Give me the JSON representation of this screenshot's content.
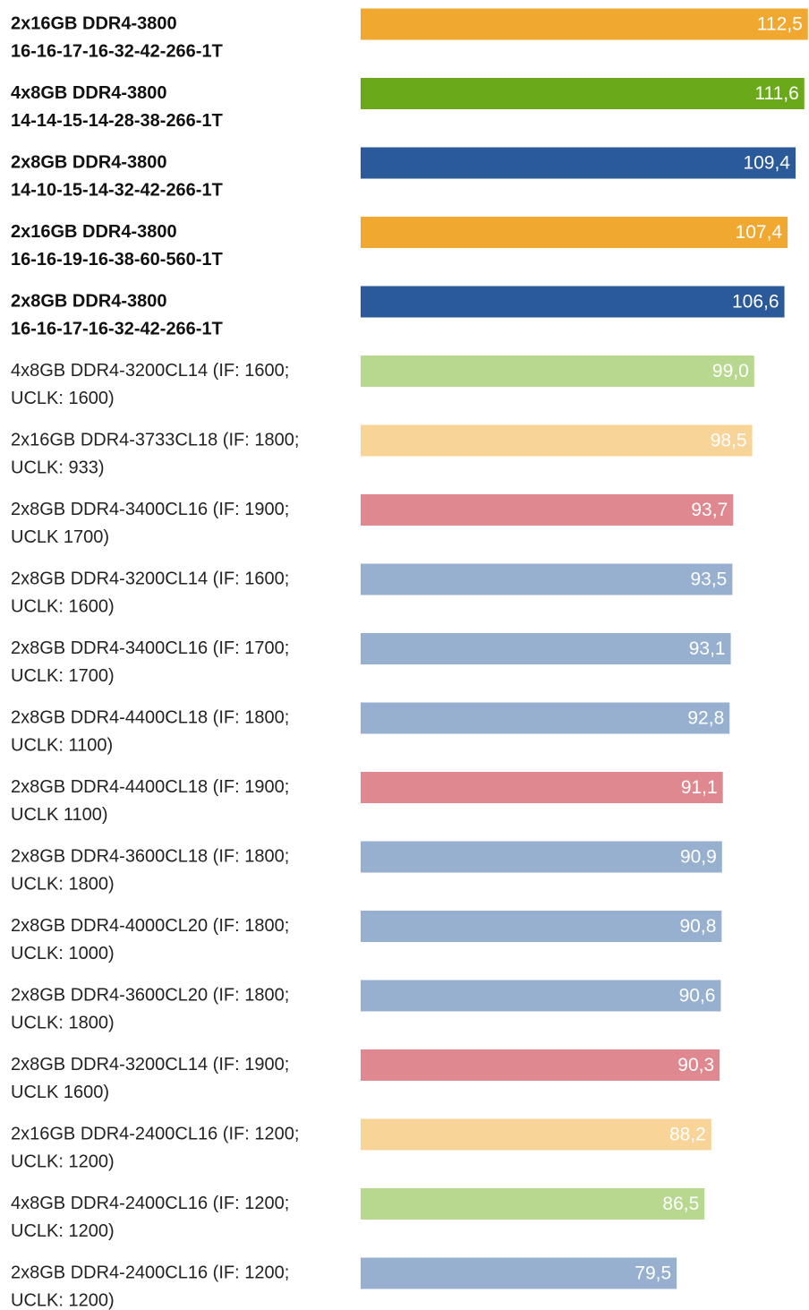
{
  "chart_data": {
    "type": "hbar",
    "categories": [
      [
        "2x16GB DDR4-3800",
        "16-16-17-16-32-42-266-1T"
      ],
      [
        "4x8GB DDR4-3800",
        "14-14-15-14-28-38-266-1T"
      ],
      [
        "2x8GB DDR4-3800",
        "14-10-15-14-32-42-266-1T"
      ],
      [
        "2x16GB DDR4-3800",
        "16-16-19-16-38-60-560-1T"
      ],
      [
        "2x8GB DDR4-3800",
        "16-16-17-16-32-42-266-1T"
      ],
      [
        "4x8GB DDR4-3200CL14 (IF: 1600;",
        "UCLK: 1600)"
      ],
      [
        "2x16GB DDR4-3733CL18 (IF: 1800;",
        "UCLK: 933)"
      ],
      [
        "2x8GB DDR4-3400CL16 (IF: 1900;",
        "UCLK 1700)"
      ],
      [
        "2x8GB DDR4-3200CL14 (IF: 1600;",
        "UCLK: 1600)"
      ],
      [
        "2x8GB DDR4-3400CL16 (IF: 1700;",
        "UCLK: 1700)"
      ],
      [
        "2x8GB DDR4-4400CL18 (IF: 1800;",
        "UCLK: 1100)"
      ],
      [
        "2x8GB DDR4-4400CL18 (IF: 1900;",
        "UCLK 1100)"
      ],
      [
        "2x8GB DDR4-3600CL18 (IF: 1800;",
        "UCLK: 1800)"
      ],
      [
        "2x8GB DDR4-4000CL20 (IF: 1800;",
        "UCLK: 1000)"
      ],
      [
        "2x8GB DDR4-3600CL20 (IF: 1800;",
        "UCLK: 1800)"
      ],
      [
        "2x8GB DDR4-3200CL14 (IF: 1900;",
        "UCLK 1600)"
      ],
      [
        "2x16GB DDR4-2400CL16 (IF: 1200;",
        "UCLK: 1200)"
      ],
      [
        "4x8GB DDR4-2400CL16 (IF: 1200;",
        "UCLK: 1200)"
      ],
      [
        "2x8GB DDR4-2400CL16 (IF: 1200;",
        "UCLK: 1200)"
      ]
    ],
    "values": [
      112.5,
      111.6,
      109.4,
      107.4,
      106.6,
      99.0,
      98.5,
      93.7,
      93.5,
      93.1,
      92.8,
      91.1,
      90.9,
      90.8,
      90.6,
      90.3,
      88.2,
      86.5,
      79.5
    ],
    "value_labels": [
      "112,5",
      "111,6",
      "109,4",
      "107,4",
      "106,6",
      "99,0",
      "98,5",
      "93,7",
      "93,5",
      "93,1",
      "92,8",
      "91,1",
      "90,9",
      "90,8",
      "90,6",
      "90,3",
      "88,2",
      "86,5",
      "79,5"
    ],
    "colors": [
      "#f0a830",
      "#6aaa1a",
      "#2a5a9a",
      "#f0a830",
      "#2a5a9a",
      "#b8d890",
      "#f8d498",
      "#e08890",
      "#98b0d0",
      "#98b0d0",
      "#98b0d0",
      "#e08890",
      "#98b0d0",
      "#98b0d0",
      "#98b0d0",
      "#e08890",
      "#f8d498",
      "#b8d890",
      "#98b0d0"
    ],
    "bold": [
      true,
      true,
      true,
      true,
      true,
      false,
      false,
      false,
      false,
      false,
      false,
      false,
      false,
      false,
      false,
      false,
      false,
      false,
      false
    ],
    "xlim": [
      0,
      113
    ]
  }
}
